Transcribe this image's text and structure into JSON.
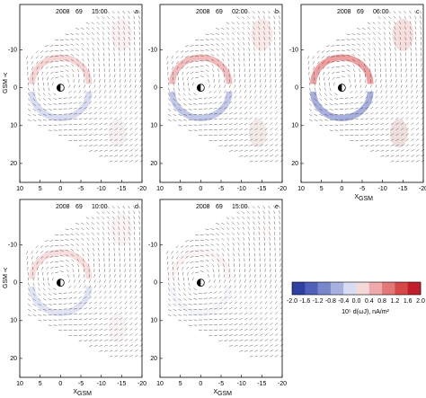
{
  "panels": [
    {
      "label": "a",
      "year": "2008",
      "doy": "69",
      "time": "15:00"
    },
    {
      "label": "b",
      "year": "2008",
      "doy": "69",
      "time": "02:00"
    },
    {
      "label": "c",
      "year": "2008",
      "doy": "69",
      "time": "06:00"
    },
    {
      "label": "d",
      "year": "2008",
      "doy": "69",
      "time": "10:00"
    },
    {
      "label": "e",
      "year": "2008",
      "doy": "69",
      "time": "15:00"
    }
  ],
  "x_ticks": [
    "10",
    "5",
    "0",
    "-5",
    "-10",
    "-15",
    "-20"
  ],
  "y_ticks": [
    "-10",
    "0",
    "10",
    "20"
  ],
  "x_axis_label": "X",
  "x_axis_sub": "GSM",
  "y_axis_label": "Y",
  "y_axis_sub": "GSM",
  "colorbar": {
    "ticks": [
      "-2.0",
      "-1.6",
      "-1.2",
      "-0.8",
      "-0.4",
      "0.0",
      "0.4",
      "0.8",
      "1.2",
      "1.6",
      "2.0"
    ],
    "label": "10⁵ d(ωJ), nA/m²"
  }
}
